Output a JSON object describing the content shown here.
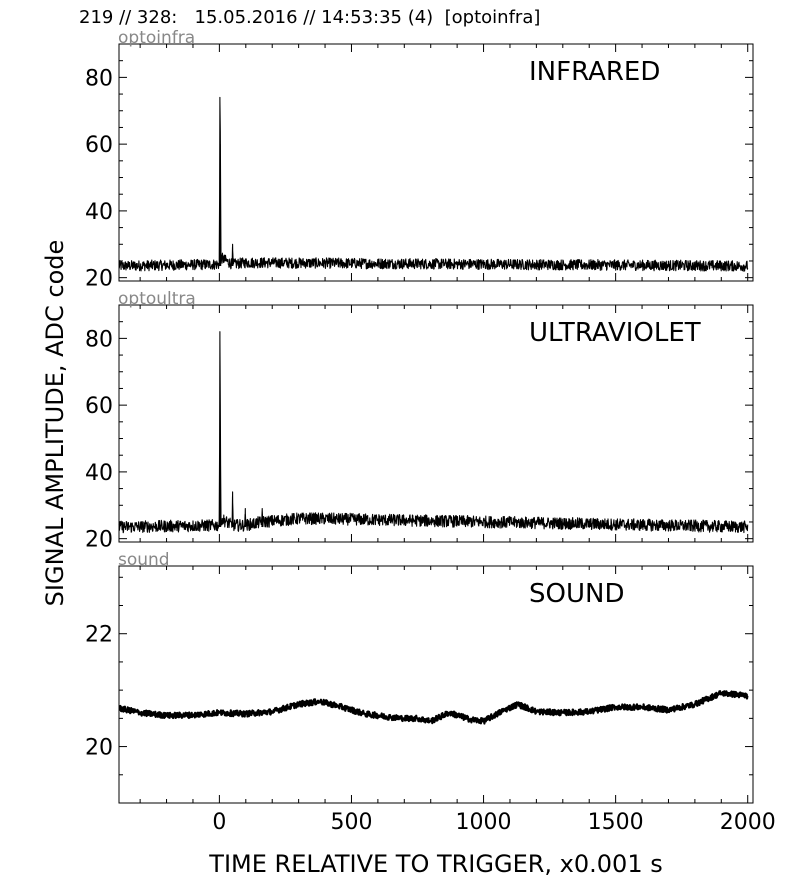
{
  "header": "219 // 328:   15.05.2016 // 14:53:35 (4)  [optoinfra]",
  "colors": {
    "trace": "#000000",
    "channel_label": "#888888",
    "frame": "#000000",
    "background": "#ffffff"
  },
  "chart_data": [
    {
      "type": "line",
      "channel": "optoinfra",
      "title": "INFRARED",
      "xlim": [
        -380,
        2020
      ],
      "ylim": [
        19,
        90
      ],
      "yticks": [
        20,
        40,
        60,
        80
      ],
      "xticks": [
        0,
        500,
        1000,
        1500,
        2000
      ],
      "show_xtick_labels": false,
      "grid": false,
      "baseline": 23.5,
      "noise_amplitude": 1.6,
      "series": [
        {
          "x": [
            -380,
            0,
            2,
            4,
            6,
            48,
            50,
            52,
            100,
            2000
          ],
          "y": [
            23.5,
            24,
            74,
            60,
            26,
            24,
            30,
            24,
            24.5,
            23.5
          ]
        }
      ]
    },
    {
      "type": "line",
      "channel": "optoultra",
      "title": "ULTRAVIOLET",
      "xlim": [
        -380,
        2020
      ],
      "ylim": [
        19,
        90
      ],
      "yticks": [
        20,
        40,
        60,
        80
      ],
      "xticks": [
        0,
        500,
        1000,
        1500,
        2000
      ],
      "show_xtick_labels": false,
      "grid": false,
      "baseline": 23.5,
      "noise_amplitude": 1.8,
      "series": [
        {
          "x": [
            -380,
            0,
            2,
            4,
            6,
            48,
            50,
            52,
            96,
            98,
            100,
            160,
            162,
            164,
            300,
            370,
            2000
          ],
          "y": [
            23.5,
            24,
            82,
            52,
            26,
            24,
            34,
            24,
            24,
            29,
            24,
            25,
            29,
            25,
            26,
            26,
            23.5
          ]
        }
      ]
    },
    {
      "type": "line",
      "channel": "sound",
      "title": "SOUND",
      "xlim": [
        -380,
        2020
      ],
      "ylim": [
        19.0,
        23.2
      ],
      "yticks": [
        20,
        22
      ],
      "xticks": [
        0,
        500,
        1000,
        1500,
        2000
      ],
      "show_xtick_labels": true,
      "grid": false,
      "noise_amplitude": 0.05,
      "series": [
        {
          "x": [
            -380,
            -300,
            -200,
            -100,
            0,
            100,
            200,
            300,
            380,
            450,
            550,
            650,
            700,
            750,
            800,
            870,
            950,
            1000,
            1080,
            1130,
            1200,
            1300,
            1400,
            1500,
            1600,
            1700,
            1800,
            1900,
            2000
          ],
          "y": [
            20.68,
            20.6,
            20.55,
            20.56,
            20.6,
            20.58,
            20.62,
            20.75,
            20.8,
            20.72,
            20.58,
            20.52,
            20.5,
            20.5,
            20.45,
            20.6,
            20.48,
            20.45,
            20.65,
            20.75,
            20.62,
            20.6,
            20.62,
            20.7,
            20.7,
            20.65,
            20.75,
            20.95,
            20.9
          ]
        }
      ]
    }
  ],
  "xlabel": "TIME RELATIVE TO TRIGGER,   x0.001 s",
  "ylabel": "SIGNAL AMPLITUDE,  ADC code"
}
